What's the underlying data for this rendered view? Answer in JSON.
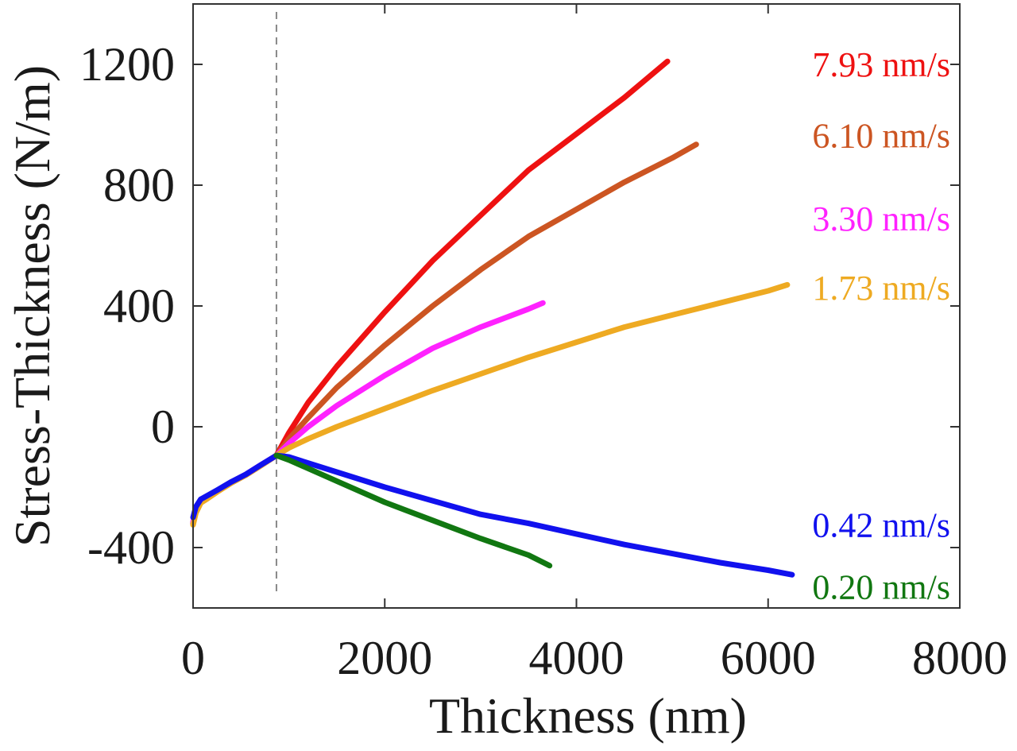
{
  "chart_data": {
    "type": "line",
    "title": "",
    "xlabel": "Thickness (nm)",
    "ylabel": "Stress-Thickness (N/m)",
    "xlim": [
      0,
      8000
    ],
    "ylim": [
      -600,
      1400
    ],
    "xticks": [
      0,
      2000,
      4000,
      6000,
      8000
    ],
    "xtick_labels": [
      "0",
      "2000",
      "4000",
      "6000",
      "8000"
    ],
    "yticks": [
      -400,
      0,
      400,
      800,
      1200
    ],
    "ytick_labels": [
      "-400",
      "0",
      "400",
      "800",
      "1200"
    ],
    "grid": false,
    "legend": "labels at right end of each curve",
    "reference_line": {
      "x": 870,
      "style": "dashed",
      "color": "#888888"
    },
    "series": [
      {
        "name": "7.93 nm/s",
        "color": "#ee1111",
        "label_y": 1200,
        "x": [
          0,
          30,
          80,
          150,
          250,
          400,
          550,
          700,
          870,
          1000,
          1200,
          1500,
          2000,
          2500,
          3000,
          3500,
          4000,
          4500,
          4950
        ],
        "y": [
          -320,
          -280,
          -250,
          -235,
          -215,
          -185,
          -160,
          -130,
          -95,
          -20,
          80,
          200,
          380,
          550,
          700,
          850,
          970,
          1090,
          1210
        ]
      },
      {
        "name": "6.10 nm/s",
        "color": "#cc5522",
        "label_y": 965,
        "x": [
          0,
          30,
          80,
          150,
          250,
          400,
          550,
          700,
          870,
          1000,
          1200,
          1500,
          2000,
          2500,
          3000,
          3500,
          4000,
          4500,
          5000,
          5250
        ],
        "y": [
          -320,
          -280,
          -250,
          -235,
          -215,
          -185,
          -160,
          -130,
          -95,
          -40,
          30,
          130,
          270,
          400,
          520,
          630,
          720,
          810,
          890,
          935
        ]
      },
      {
        "name": "3.30 nm/s",
        "color": "#ff22ff",
        "label_y": 690,
        "x": [
          0,
          30,
          80,
          150,
          250,
          400,
          550,
          700,
          870,
          1000,
          1200,
          1500,
          2000,
          2500,
          3000,
          3500,
          3650
        ],
        "y": [
          -315,
          -275,
          -245,
          -232,
          -212,
          -183,
          -158,
          -128,
          -95,
          -55,
          0,
          70,
          170,
          260,
          330,
          390,
          410
        ]
      },
      {
        "name": "1.73 nm/s",
        "color": "#eeaa22",
        "label_y": 460,
        "x": [
          0,
          30,
          80,
          150,
          250,
          400,
          550,
          700,
          870,
          1000,
          1200,
          1500,
          2000,
          2500,
          3000,
          3500,
          4000,
          4500,
          5000,
          5500,
          6000,
          6200
        ],
        "y": [
          -325,
          -285,
          -252,
          -238,
          -216,
          -186,
          -160,
          -130,
          -95,
          -70,
          -40,
          0,
          60,
          120,
          175,
          230,
          280,
          330,
          370,
          410,
          450,
          470
        ]
      },
      {
        "name": "0.42 nm/s",
        "color": "#1111ee",
        "label_y": -325,
        "x": [
          0,
          30,
          80,
          150,
          250,
          400,
          550,
          700,
          870,
          1000,
          1500,
          2000,
          2500,
          3000,
          3500,
          4000,
          4500,
          5000,
          5500,
          6000,
          6250
        ],
        "y": [
          -300,
          -265,
          -240,
          -228,
          -210,
          -182,
          -158,
          -128,
          -95,
          -100,
          -150,
          -200,
          -245,
          -290,
          -320,
          -355,
          -390,
          -420,
          -450,
          -475,
          -490
        ]
      },
      {
        "name": "0.20 nm/s",
        "color": "#117711",
        "label_y": -530,
        "x": [
          870,
          1000,
          1500,
          2000,
          2500,
          3000,
          3500,
          3720
        ],
        "y": [
          -95,
          -110,
          -180,
          -250,
          -310,
          -370,
          -425,
          -460
        ]
      }
    ]
  }
}
